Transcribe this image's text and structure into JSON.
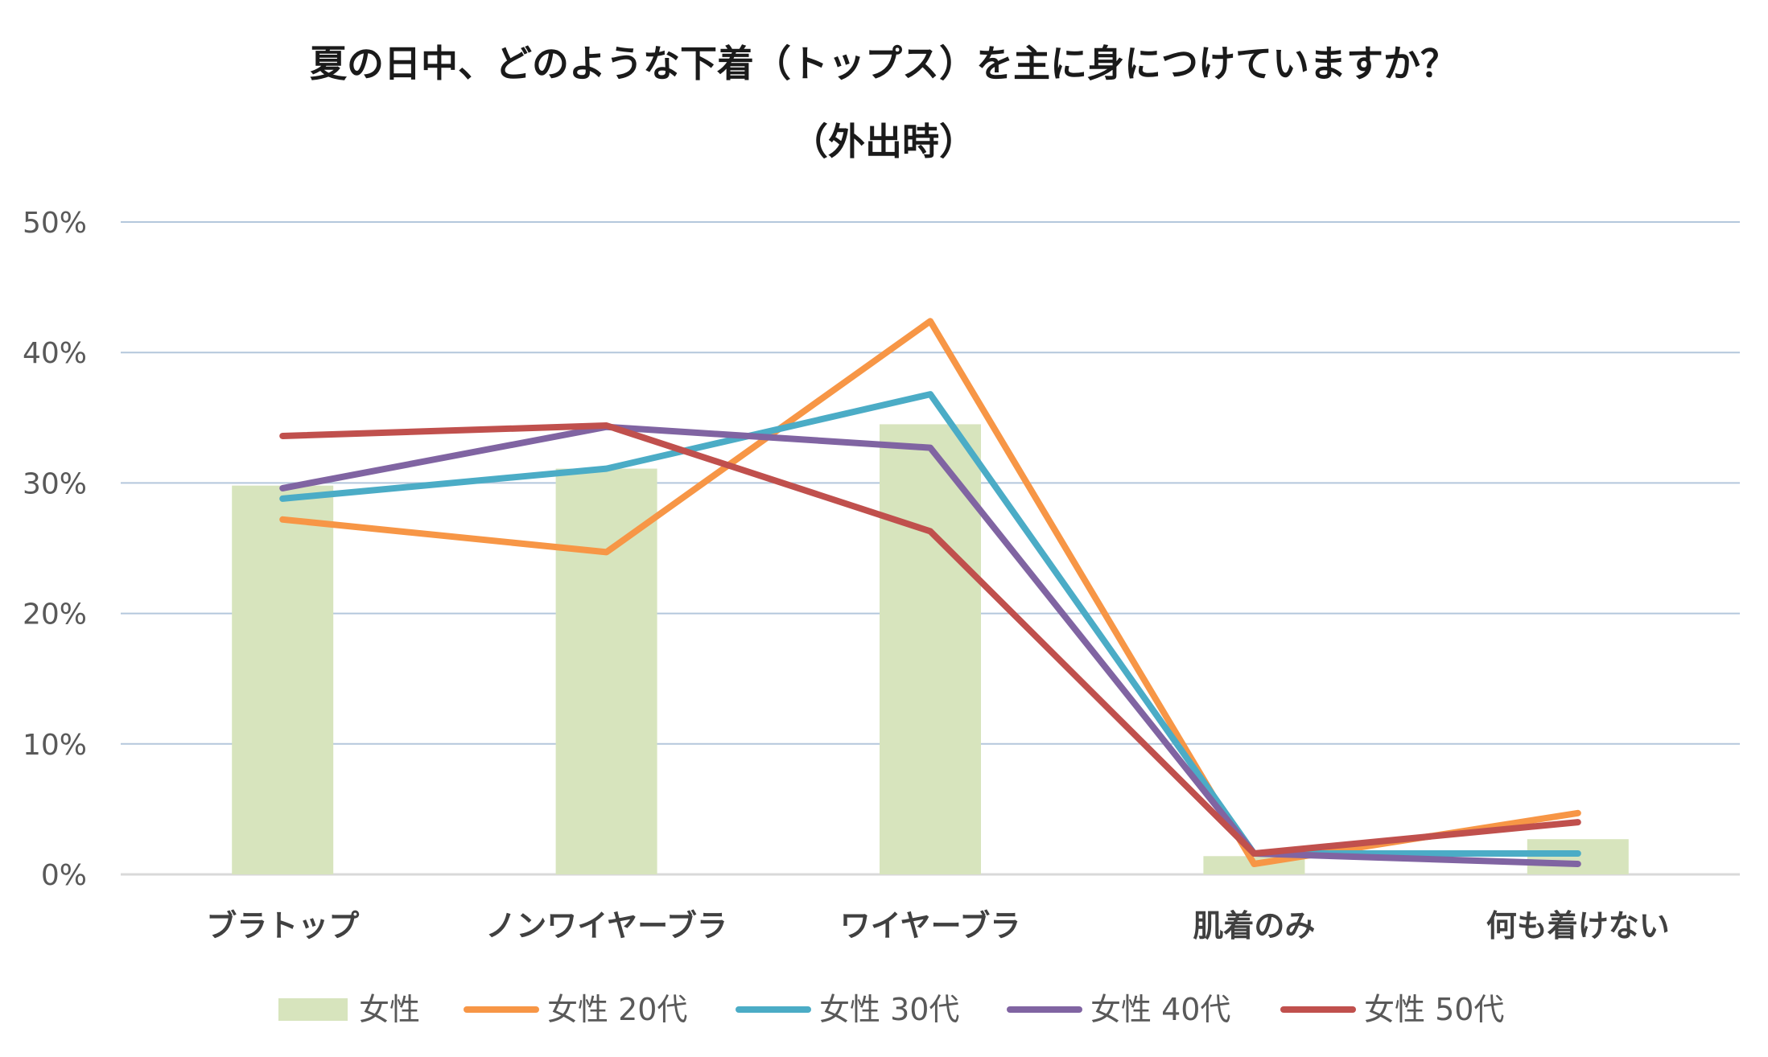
{
  "chart_data": {
    "type": "bar+line",
    "title": "夏の日中、どのような下着（トップス）を主に身につけていますか？",
    "subtitle": "（外出時）",
    "categories": [
      "ブラトップ",
      "ノンワイヤーブラ",
      "ワイヤーブラ",
      "肌着のみ",
      "何も着けない"
    ],
    "y_ticks": [
      "0%",
      "10%",
      "20%",
      "30%",
      "40%",
      "50%"
    ],
    "ylim": [
      0,
      50
    ],
    "grid": true,
    "legend_position": "bottom",
    "series": [
      {
        "name": "女性",
        "kind": "bar",
        "color": "#d7e4bd",
        "values": [
          29.8,
          31.1,
          34.5,
          1.4,
          2.7
        ]
      },
      {
        "name": "女性 20代",
        "kind": "line",
        "color": "#f79646",
        "values": [
          27.2,
          24.7,
          42.4,
          0.8,
          4.7
        ]
      },
      {
        "name": "女性 30代",
        "kind": "line",
        "color": "#4bacc6",
        "values": [
          28.8,
          31.1,
          36.8,
          1.6,
          1.6
        ]
      },
      {
        "name": "女性 40代",
        "kind": "line",
        "color": "#8064a2",
        "values": [
          29.6,
          34.3,
          32.7,
          1.6,
          0.8
        ]
      },
      {
        "name": "女性 50代",
        "kind": "line",
        "color": "#c0504d",
        "values": [
          33.6,
          34.4,
          26.3,
          1.6,
          4.0
        ]
      }
    ]
  }
}
